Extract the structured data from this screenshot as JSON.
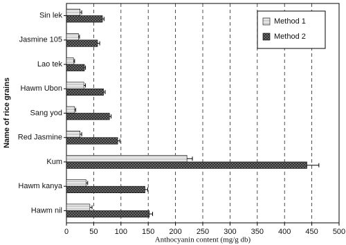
{
  "chart_data": {
    "type": "hbar",
    "x_label": "Anthocyanin content (mg/g db)",
    "y_label": "Name of rice grains",
    "categories": [
      "Sin lek",
      "Jasmine 105",
      "Lao tek",
      "Hawm Ubon",
      "Sang yod",
      "Red Jasmine",
      "Kum",
      "Hawm kanya",
      "Hawm nil"
    ],
    "series": [
      {
        "name": "Method 1",
        "color": "#e8e8e8",
        "values": [
          25,
          22,
          13,
          32,
          15,
          25,
          221,
          36,
          43
        ],
        "errors": [
          3,
          2,
          2,
          3,
          2,
          3,
          10,
          3,
          4
        ]
      },
      {
        "name": "Method 2",
        "color": "#333333",
        "values": [
          66,
          57,
          33,
          68,
          79,
          94,
          441,
          144,
          152
        ],
        "errors": [
          3,
          4,
          2,
          3,
          3,
          4,
          22,
          5,
          6
        ]
      }
    ],
    "xlim": [
      0,
      500
    ],
    "xticks": [
      0,
      50,
      100,
      150,
      200,
      250,
      300,
      350,
      400,
      450,
      500
    ],
    "grid": true,
    "legend": "upper right"
  }
}
